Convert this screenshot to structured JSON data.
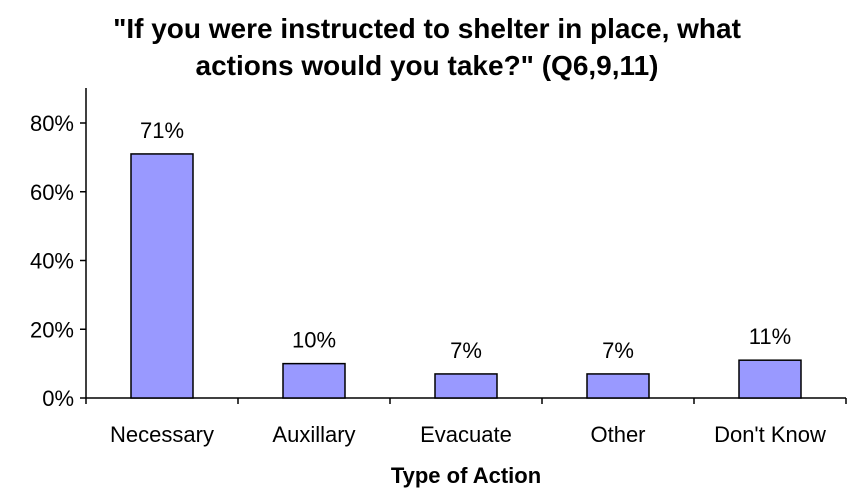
{
  "chart_data": {
    "type": "bar",
    "title_lines": [
      "\"If you were instructed to shelter in place, what",
      "actions would you take?\" (Q6,9,11)"
    ],
    "categories": [
      "Necessary",
      "Auxillary",
      "Evacuate",
      "Other",
      "Don't Know"
    ],
    "values": [
      71,
      10,
      7,
      7,
      11
    ],
    "data_labels": [
      "71%",
      "10%",
      "7%",
      "7%",
      "11%"
    ],
    "xlabel": "Type of Action",
    "ylabel": "",
    "ylim": [
      0,
      90
    ],
    "yticks": [
      0,
      20,
      40,
      60,
      80
    ],
    "ytick_labels": [
      "0%",
      "20%",
      "40%",
      "60%",
      "80%"
    ],
    "grid": false,
    "legend": "none",
    "bar_color": "#9999ff",
    "bar_edge_color": "#000000"
  }
}
